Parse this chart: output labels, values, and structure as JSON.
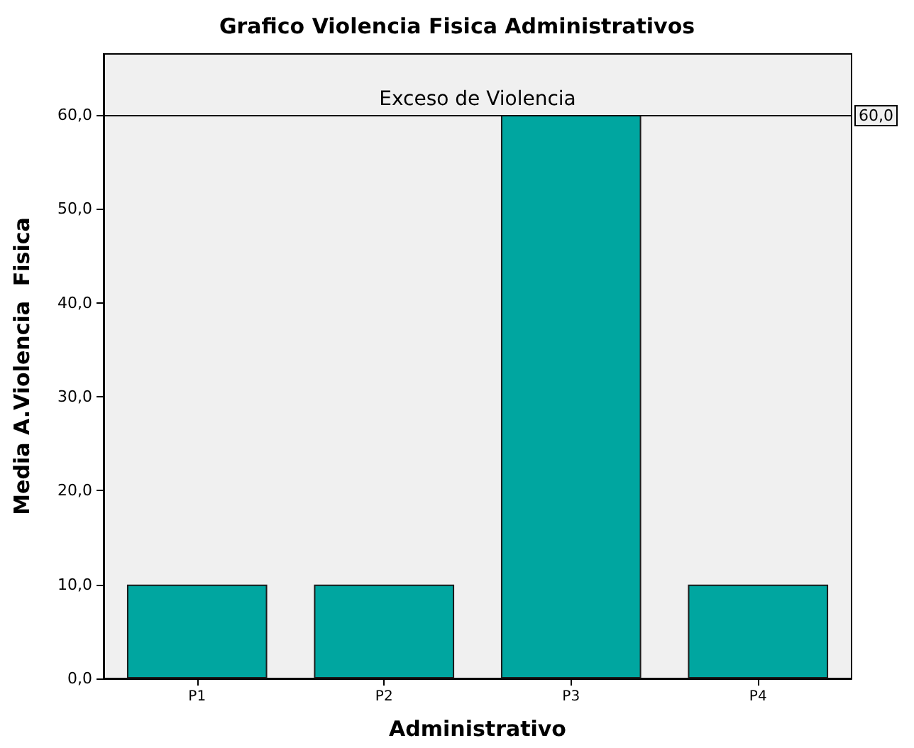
{
  "chart_data": {
    "type": "bar",
    "title": "Grafico Violencia Fisica Administrativos",
    "xlabel": "Administrativo",
    "ylabel": "Media A.Violencia  Fisica",
    "categories": [
      "P1",
      "P2",
      "P3",
      "P4"
    ],
    "values": [
      10,
      10,
      60,
      10
    ],
    "color": "#00a6a0",
    "ylim": [
      0,
      66.5
    ],
    "yticks": [
      {
        "value": 0,
        "label": "0,0"
      },
      {
        "value": 10,
        "label": "10,0"
      },
      {
        "value": 20,
        "label": "20,0"
      },
      {
        "value": 30,
        "label": "30,0"
      },
      {
        "value": 40,
        "label": "40,0"
      },
      {
        "value": 50,
        "label": "50,0"
      },
      {
        "value": 60,
        "label": "60,0"
      }
    ],
    "ref_lines": [
      {
        "axis": "y",
        "value": 60,
        "label": "Exceso de Violencia",
        "color": "#000000"
      }
    ],
    "annotations": [
      {
        "text": "60,0",
        "y": 60
      }
    ],
    "grid": false
  }
}
